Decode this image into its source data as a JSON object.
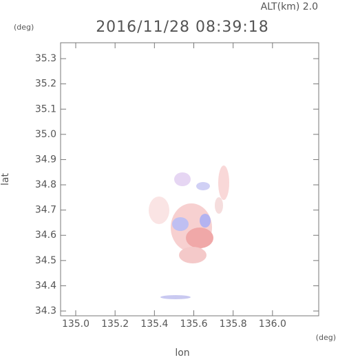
{
  "chart_data": {
    "type": "map",
    "title": "2016/11/28 08:39:18",
    "subtitle": "ALT(km) 2.0",
    "y_unit": "(deg)",
    "x_unit": "(deg)",
    "xlabel": "lon",
    "ylabel": "lat",
    "xlim": [
      134.923,
      136.235
    ],
    "ylim": [
      34.281,
      35.363
    ],
    "xticks": [
      {
        "value": 135,
        "label": "135.0"
      },
      135.2,
      135.4,
      135.6,
      135.8,
      {
        "value": 136,
        "label": "136.0"
      }
    ],
    "yticks": [
      34.3,
      34.4,
      34.5,
      34.6,
      34.7,
      34.8,
      34.9,
      {
        "value": 35,
        "label": "35.0"
      },
      35.1,
      35.2,
      35.3
    ]
  }
}
